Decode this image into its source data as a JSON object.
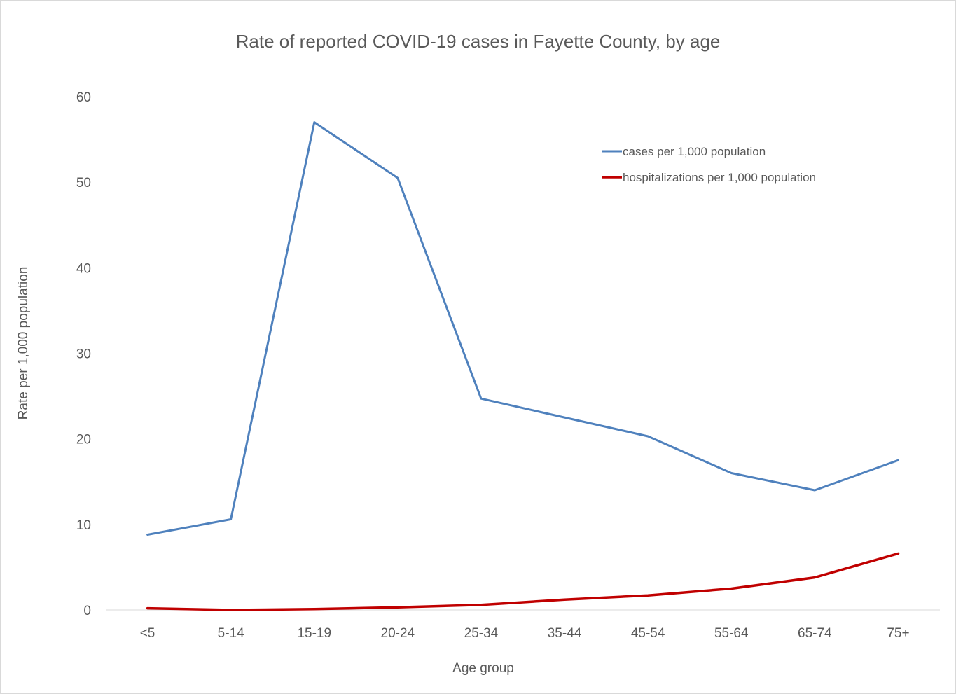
{
  "chart_data": {
    "type": "line",
    "title": "Rate of reported COVID-19 cases in Fayette County, by age",
    "xlabel": "Age group",
    "ylabel": "Rate per 1,000 population",
    "categories": [
      "<5",
      "5-14",
      "15-19",
      "20-24",
      "25-34",
      "35-44",
      "45-54",
      "55-64",
      "65-74",
      "75+"
    ],
    "ylim": [
      0,
      60
    ],
    "yticks": [
      0,
      10,
      20,
      30,
      40,
      50,
      60
    ],
    "grid": false,
    "legend_position": "top-right",
    "series": [
      {
        "name": "cases per 1,000 population",
        "color": "#4f81bd",
        "values": [
          8.8,
          10.6,
          57.0,
          50.5,
          24.7,
          22.5,
          20.3,
          16.0,
          14.0,
          17.5
        ]
      },
      {
        "name": "hospitalizations per 1,000 population",
        "color": "#c00000",
        "values": [
          0.2,
          0.0,
          0.1,
          0.3,
          0.6,
          1.2,
          1.7,
          2.5,
          3.8,
          6.6
        ]
      }
    ]
  }
}
